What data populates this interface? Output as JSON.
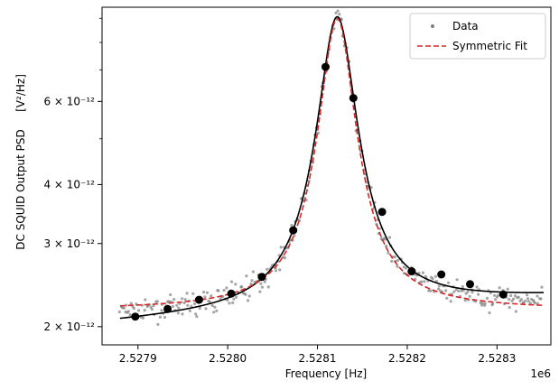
{
  "chart_data": {
    "type": "scatter",
    "xlabel": "Frequency [Hz]",
    "ylabel": "DC SQUID Output PSD",
    "ylabel_unit": "[V²/Hz]",
    "x_offset_label": "1e6",
    "x_tick_labels": [
      "2.5279",
      "2.5280",
      "2.5281",
      "2.5282",
      "2.5283"
    ],
    "x_ticks": [
      2527900,
      2528000,
      2528100,
      2528200,
      2528300
    ],
    "xlim": [
      2527860,
      2528360
    ],
    "y_scale": "log",
    "ylim": [
      1.83e-12,
      9.5e-12
    ],
    "y_ticks_major": [
      2e-12,
      3e-12,
      4e-12,
      6e-12
    ],
    "y_tick_labels": [
      "2 × 10⁻¹²",
      "3 × 10⁻¹²",
      "4 × 10⁻¹²",
      "6 × 10⁻¹²"
    ],
    "y_ticks_minor": [
      5e-12,
      7e-12,
      8e-12,
      9e-12
    ],
    "grid": false,
    "legend_position": "top-right",
    "legend": [
      {
        "label": "Data",
        "style": "points",
        "color": "#808080"
      },
      {
        "label": "Symmetric Fit",
        "style": "dashed",
        "color": "#d62728"
      }
    ],
    "fit_symmetric": {
      "f0": 2528122,
      "gamma": 19.5,
      "amplitude": 6.82e-12,
      "baseline": 2.17e-12,
      "color": "#d62728"
    },
    "fit_asymmetric": {
      "f0": 2528122,
      "gamma": 21,
      "amplitude": 6.9e-12,
      "baseline": 2.02e-12,
      "slope_per_hz": 5.8e-16,
      "color": "#000000"
    },
    "binned_points": [
      {
        "x": 2527897,
        "y": 2.1e-12
      },
      {
        "x": 2527933,
        "y": 2.18e-12
      },
      {
        "x": 2527968,
        "y": 2.28e-12
      },
      {
        "x": 2528004,
        "y": 2.35e-12
      },
      {
        "x": 2528038,
        "y": 2.55e-12
      },
      {
        "x": 2528073,
        "y": 3.2e-12
      },
      {
        "x": 2528109,
        "y": 7.1e-12
      },
      {
        "x": 2528140,
        "y": 6.1e-12
      },
      {
        "x": 2528172,
        "y": 3.5e-12
      },
      {
        "x": 2528205,
        "y": 2.62e-12
      },
      {
        "x": 2528238,
        "y": 2.58e-12
      },
      {
        "x": 2528270,
        "y": 2.46e-12
      },
      {
        "x": 2528307,
        "y": 2.34e-12
      }
    ],
    "raw_data_seed": 7,
    "raw_data_count": 330,
    "raw_data_x_range": [
      2527880,
      2528350
    ],
    "raw_data_scatter_fraction": 0.045,
    "marker_color_binned": "#000000",
    "marker_color_raw": "#808080"
  }
}
